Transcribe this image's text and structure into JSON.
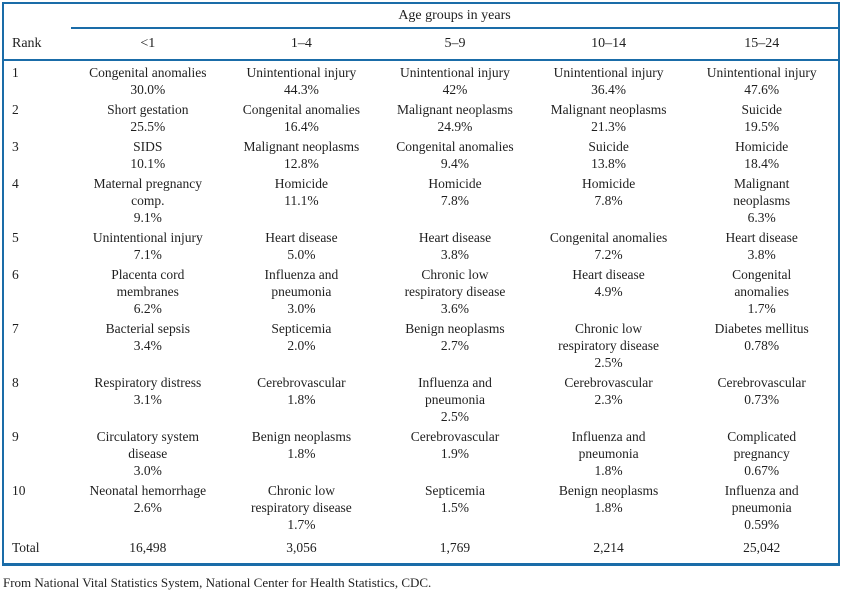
{
  "table": {
    "title": "Age groups in years",
    "rank_header": "Rank",
    "total_label": "Total",
    "columns": [
      "<1",
      "1–4",
      "5–9",
      "10–14",
      "15–24"
    ],
    "rows": [
      {
        "rank": "1",
        "cells": [
          {
            "cause": "Congenital anomalies",
            "pct": "30.0%"
          },
          {
            "cause": "Unintentional injury",
            "pct": "44.3%"
          },
          {
            "cause": "Unintentional injury",
            "pct": "42%"
          },
          {
            "cause": "Unintentional injury",
            "pct": "36.4%"
          },
          {
            "cause": "Unintentional injury",
            "pct": "47.6%"
          }
        ]
      },
      {
        "rank": "2",
        "cells": [
          {
            "cause": "Short gestation",
            "pct": "25.5%"
          },
          {
            "cause": "Congenital anomalies",
            "pct": "16.4%"
          },
          {
            "cause": "Malignant neoplasms",
            "pct": "24.9%"
          },
          {
            "cause": "Malignant neoplasms",
            "pct": "21.3%"
          },
          {
            "cause": "Suicide",
            "pct": "19.5%"
          }
        ]
      },
      {
        "rank": "3",
        "cells": [
          {
            "cause": "SIDS",
            "pct": "10.1%"
          },
          {
            "cause": "Malignant neoplasms",
            "pct": "12.8%"
          },
          {
            "cause": "Congenital anomalies",
            "pct": "9.4%"
          },
          {
            "cause": "Suicide",
            "pct": "13.8%"
          },
          {
            "cause": "Homicide",
            "pct": "18.4%"
          }
        ]
      },
      {
        "rank": "4",
        "cells": [
          {
            "cause": "Maternal pregnancy\ncomp.",
            "pct": "9.1%"
          },
          {
            "cause": "Homicide",
            "pct": "11.1%"
          },
          {
            "cause": "Homicide",
            "pct": "7.8%"
          },
          {
            "cause": "Homicide",
            "pct": "7.8%"
          },
          {
            "cause": "Malignant\nneoplasms",
            "pct": "6.3%"
          }
        ]
      },
      {
        "rank": "5",
        "cells": [
          {
            "cause": "Unintentional injury",
            "pct": "7.1%"
          },
          {
            "cause": "Heart disease",
            "pct": "5.0%"
          },
          {
            "cause": "Heart disease",
            "pct": "3.8%"
          },
          {
            "cause": "Congenital anomalies",
            "pct": "7.2%"
          },
          {
            "cause": "Heart disease",
            "pct": "3.8%"
          }
        ]
      },
      {
        "rank": "6",
        "cells": [
          {
            "cause": "Placenta cord\nmembranes",
            "pct": "6.2%"
          },
          {
            "cause": "Influenza and\npneumonia",
            "pct": "3.0%"
          },
          {
            "cause": "Chronic low\nrespiratory disease",
            "pct": "3.6%"
          },
          {
            "cause": "Heart disease",
            "pct": "4.9%"
          },
          {
            "cause": "Congenital\nanomalies",
            "pct": "1.7%"
          }
        ]
      },
      {
        "rank": "7",
        "cells": [
          {
            "cause": "Bacterial sepsis",
            "pct": "3.4%"
          },
          {
            "cause": "Septicemia",
            "pct": "2.0%"
          },
          {
            "cause": "Benign neoplasms",
            "pct": "2.7%"
          },
          {
            "cause": "Chronic low\nrespiratory disease",
            "pct": "2.5%"
          },
          {
            "cause": "Diabetes mellitus",
            "pct": "0.78%"
          }
        ]
      },
      {
        "rank": "8",
        "cells": [
          {
            "cause": "Respiratory distress",
            "pct": "3.1%"
          },
          {
            "cause": "Cerebrovascular",
            "pct": "1.8%"
          },
          {
            "cause": "Influenza and\npneumonia",
            "pct": "2.5%"
          },
          {
            "cause": "Cerebrovascular",
            "pct": "2.3%"
          },
          {
            "cause": "Cerebrovascular",
            "pct": "0.73%"
          }
        ]
      },
      {
        "rank": "9",
        "cells": [
          {
            "cause": "Circulatory system\ndisease",
            "pct": "3.0%"
          },
          {
            "cause": "Benign neoplasms",
            "pct": "1.8%"
          },
          {
            "cause": "Cerebrovascular",
            "pct": "1.9%"
          },
          {
            "cause": "Influenza and\npneumonia",
            "pct": "1.8%"
          },
          {
            "cause": "Complicated\npregnancy",
            "pct": "0.67%"
          }
        ]
      },
      {
        "rank": "10",
        "cells": [
          {
            "cause": "Neonatal hemorrhage",
            "pct": "2.6%"
          },
          {
            "cause": "Chronic low\nrespiratory disease",
            "pct": "1.7%"
          },
          {
            "cause": "Septicemia",
            "pct": "1.5%"
          },
          {
            "cause": "Benign neoplasms",
            "pct": "1.8%"
          },
          {
            "cause": "Influenza and\npneumonia",
            "pct": "0.59%"
          }
        ]
      }
    ],
    "totals": [
      "16,498",
      "3,056",
      "1,769",
      "2,214",
      "25,042"
    ],
    "source": "From National Vital Statistics System, National Center for Health Statistics, CDC.",
    "colors": {
      "rule_blue": "#1a6ca8",
      "text": "#1f1f1f",
      "background": "#ffffff"
    }
  }
}
